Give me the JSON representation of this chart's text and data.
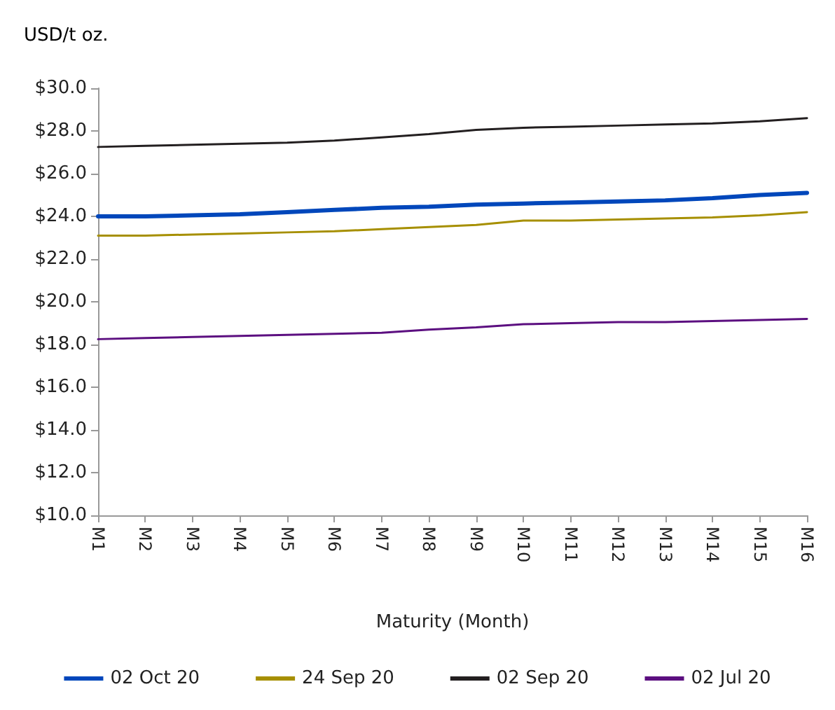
{
  "chart_data": {
    "type": "line",
    "ylabel": "USD/t oz.",
    "xlabel": "Maturity (Month)",
    "categories": [
      "M1",
      "M2",
      "M3",
      "M4",
      "M5",
      "M6",
      "M7",
      "M8",
      "M9",
      "M10",
      "M11",
      "M12",
      "M13",
      "M14",
      "M15",
      "M16"
    ],
    "series": [
      {
        "name": "02 Oct 20",
        "color": "#0047bb",
        "values": [
          24.0,
          24.0,
          24.05,
          24.1,
          24.2,
          24.3,
          24.4,
          24.45,
          24.55,
          24.6,
          24.65,
          24.7,
          24.75,
          24.85,
          25.0,
          25.1
        ]
      },
      {
        "name": "24 Sep 20",
        "color": "#a68f00",
        "values": [
          23.1,
          23.1,
          23.15,
          23.2,
          23.25,
          23.3,
          23.4,
          23.5,
          23.6,
          23.8,
          23.8,
          23.85,
          23.9,
          23.95,
          24.05,
          24.2
        ]
      },
      {
        "name": "02 Sep 20",
        "color": "#231f20",
        "values": [
          27.25,
          27.3,
          27.35,
          27.4,
          27.45,
          27.55,
          27.7,
          27.85,
          28.05,
          28.15,
          28.2,
          28.25,
          28.3,
          28.35,
          28.45,
          28.6
        ]
      },
      {
        "name": "02 Jul 20",
        "color": "#5c0f80",
        "values": [
          18.25,
          18.3,
          18.35,
          18.4,
          18.45,
          18.5,
          18.55,
          18.7,
          18.8,
          18.95,
          19.0,
          19.05,
          19.05,
          19.1,
          19.15,
          19.2
        ]
      }
    ],
    "ylim": [
      10,
      30
    ],
    "yticks": [
      {
        "value": 10,
        "label": "$10.0"
      },
      {
        "value": 12,
        "label": "$12.0"
      },
      {
        "value": 14,
        "label": "$14.0"
      },
      {
        "value": 16,
        "label": "$16.0"
      },
      {
        "value": 18,
        "label": "$18.0"
      },
      {
        "value": 20,
        "label": "$20.0"
      },
      {
        "value": 22,
        "label": "$22.0"
      },
      {
        "value": 24,
        "label": "$24.0"
      },
      {
        "value": 26,
        "label": "$26.0"
      },
      {
        "value": 28,
        "label": "$28.0"
      },
      {
        "value": 30,
        "label": "$30.0"
      }
    ],
    "grid": false,
    "legend": "bottom",
    "marker": "none",
    "line_style": "solid"
  }
}
